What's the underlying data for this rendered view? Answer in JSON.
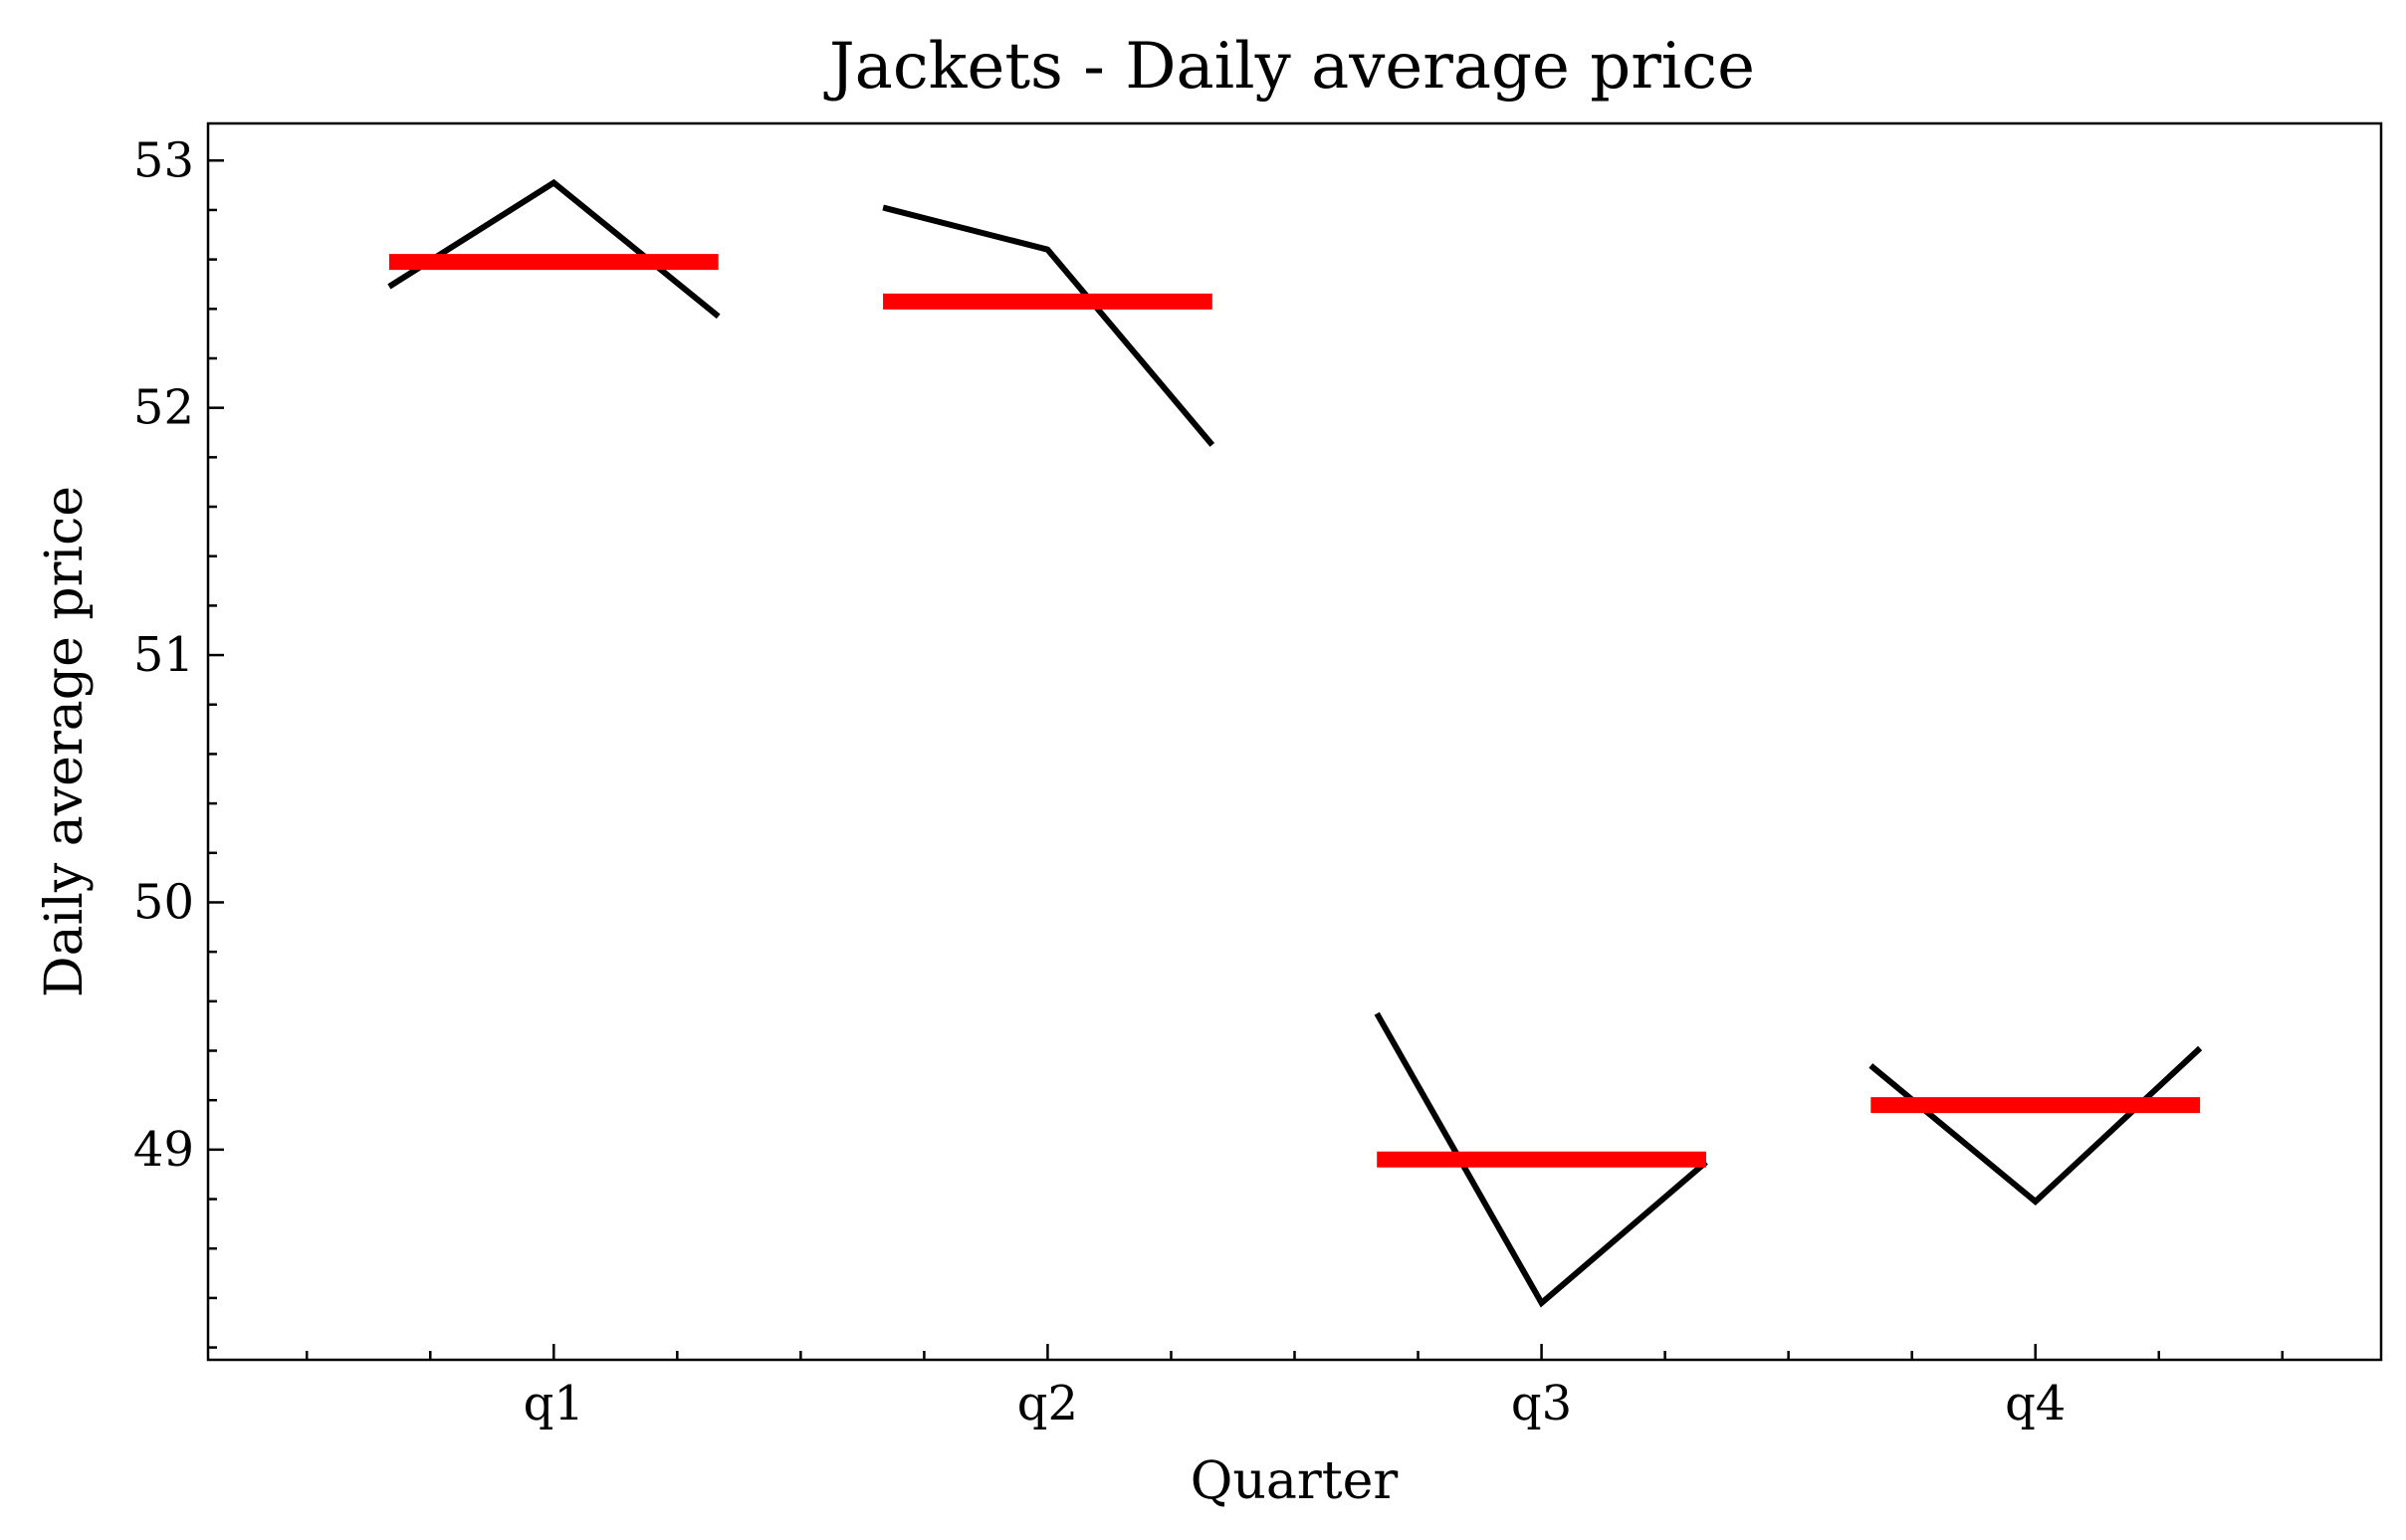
{
  "chart_data": {
    "type": "line",
    "title": "Jackets - Daily average price",
    "xlabel": "Quarter",
    "ylabel": "Daily average price",
    "categories": [
      "q1",
      "q2",
      "q3",
      "q4"
    ],
    "ylim": [
      48.15,
      53.15
    ],
    "yticks": [
      49,
      50,
      51,
      52,
      53
    ],
    "grid": false,
    "legend": "none",
    "groups": [
      {
        "category": "q1",
        "values": [
          52.49,
          52.91,
          52.37
        ],
        "mean": 52.59
      },
      {
        "category": "q2",
        "values": [
          52.81,
          52.64,
          51.85
        ],
        "mean": 52.43
      },
      {
        "category": "q3",
        "values": [
          49.55,
          48.38,
          48.95
        ],
        "mean": 48.96
      },
      {
        "category": "q4",
        "values": [
          49.34,
          48.79,
          49.41
        ],
        "mean": 49.18
      }
    ],
    "colors": {
      "series": "#000000",
      "mean": "#ff0000"
    }
  }
}
